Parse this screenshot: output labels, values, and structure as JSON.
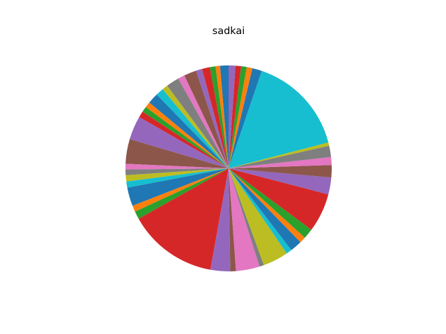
{
  "chart_data": {
    "type": "pie",
    "title": "sadkai",
    "start_angle": 90,
    "direction": "counterclockwise",
    "legend": "none",
    "palette": [
      "#1f77b4",
      "#ff7f0e",
      "#2ca02c",
      "#d62728",
      "#9467bd",
      "#8c564b",
      "#e377c2",
      "#7f7f7f",
      "#bcbd22",
      "#17becf"
    ],
    "values": [
      1.5,
      0.8,
      1.0,
      1.4,
      1.1,
      2.2,
      1.2,
      2.3,
      1.0,
      1.4,
      1.9,
      1.0,
      1.0,
      1.1,
      4.2,
      4.4,
      1.0,
      1.0,
      1.1,
      1.1,
      3.3,
      1.1,
      1.4,
      15.9,
      3.5,
      1.0,
      4.2,
      0.8,
      4.5,
      1.0,
      2.1,
      1.1,
      1.8,
      6.9,
      3.0,
      2.2,
      1.4,
      2.0,
      0.6,
      17.8,
      1.7,
      1.0,
      1.0,
      1.0,
      1.2
    ]
  }
}
